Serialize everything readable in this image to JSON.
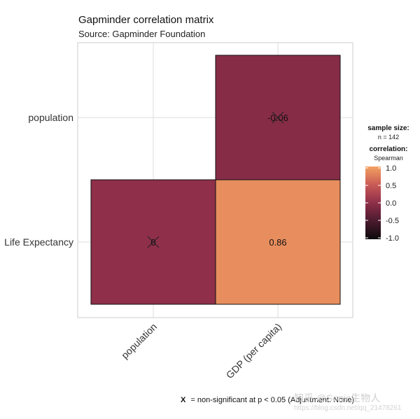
{
  "chart_data": {
    "type": "heatmap",
    "title": "Gapminder correlation matrix",
    "subtitle": "Source: Gapminder Foundation",
    "x_categories": [
      "population",
      "GDP (per capita)"
    ],
    "y_categories": [
      "Life Expectancy",
      "population"
    ],
    "cells": [
      {
        "x": "population",
        "y": "Life Expectancy",
        "value": 0,
        "label": "0",
        "significant": false
      },
      {
        "x": "GDP (per capita)",
        "y": "Life Expectancy",
        "value": 0.86,
        "label": "0.86",
        "significant": true
      },
      {
        "x": "GDP (per capita)",
        "y": "population",
        "value": -0.06,
        "label": "-0.06",
        "significant": false
      }
    ],
    "color_scale": {
      "min": -1.0,
      "max": 1.0,
      "ticks": [
        "1.0",
        "0.5",
        "0.0",
        "-0.5",
        "-1.0"
      ],
      "stops": [
        {
          "value": -1.0,
          "color": "#0d0a0b"
        },
        {
          "value": -0.5,
          "color": "#4a1a2e"
        },
        {
          "value": 0.0,
          "color": "#8f2f4a"
        },
        {
          "value": 0.5,
          "color": "#c95a56"
        },
        {
          "value": 1.0,
          "color": "#f4a261"
        }
      ]
    },
    "legend": {
      "sample_size_title": "sample size:",
      "sample_size_value": "n = 142",
      "correlation_title": "correlation:",
      "correlation_method": "Spearman",
      "placement": "right"
    },
    "caption": {
      "prefix": "X",
      "text": "= non-significant at p < 0.05 (Adjustment: None)"
    },
    "grid": true
  },
  "watermark": {
    "text": "知乎 @Sonic生物人",
    "subtext": "https://blog.csdn.net/qq_21478261"
  }
}
